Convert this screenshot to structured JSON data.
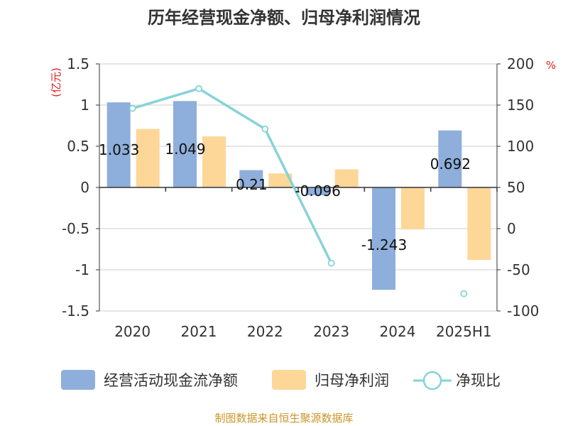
{
  "chart_data": {
    "type": "bar+line",
    "title": "历年经营现金净额、归母净利润情况",
    "categories": [
      "2020",
      "2021",
      "2022",
      "2023",
      "2024",
      "2025H1"
    ],
    "left_axis": {
      "unit": "(亿元)",
      "ylim": [
        -1.5,
        1.5
      ],
      "ticks": [
        "1.5",
        "1",
        "0.5",
        "0",
        "-0.5",
        "-1",
        "-1.5"
      ],
      "tick_values": [
        1.5,
        1,
        0.5,
        0,
        -0.5,
        -1,
        -1.5
      ]
    },
    "right_axis": {
      "unit": "%",
      "ylim": [
        -100,
        200
      ],
      "ticks": [
        "200",
        "150",
        "100",
        "50",
        "0",
        "-50",
        "-100"
      ],
      "tick_values": [
        200,
        150,
        100,
        50,
        0,
        -50,
        -100
      ]
    },
    "series": [
      {
        "name": "经营活动现金流净额",
        "type": "bar",
        "axis": "left",
        "color": "#8eaedb",
        "values": [
          1.033,
          1.049,
          0.21,
          -0.096,
          -1.243,
          0.692
        ],
        "labels": [
          "1.033",
          "1.049",
          "0.21",
          "-0.096",
          "-1.243",
          "0.692"
        ]
      },
      {
        "name": "归母净利润",
        "type": "bar",
        "axis": "left",
        "color": "#fdd798",
        "values": [
          0.71,
          0.62,
          0.17,
          0.22,
          -0.51,
          -0.88
        ]
      },
      {
        "name": "净现比",
        "type": "line",
        "axis": "right",
        "color": "#86d3d8",
        "values": [
          146,
          170,
          121,
          -42,
          null,
          -79
        ]
      }
    ],
    "grid": true,
    "legend": "bottom"
  },
  "source": "制图数据来自恒生聚源数据库"
}
